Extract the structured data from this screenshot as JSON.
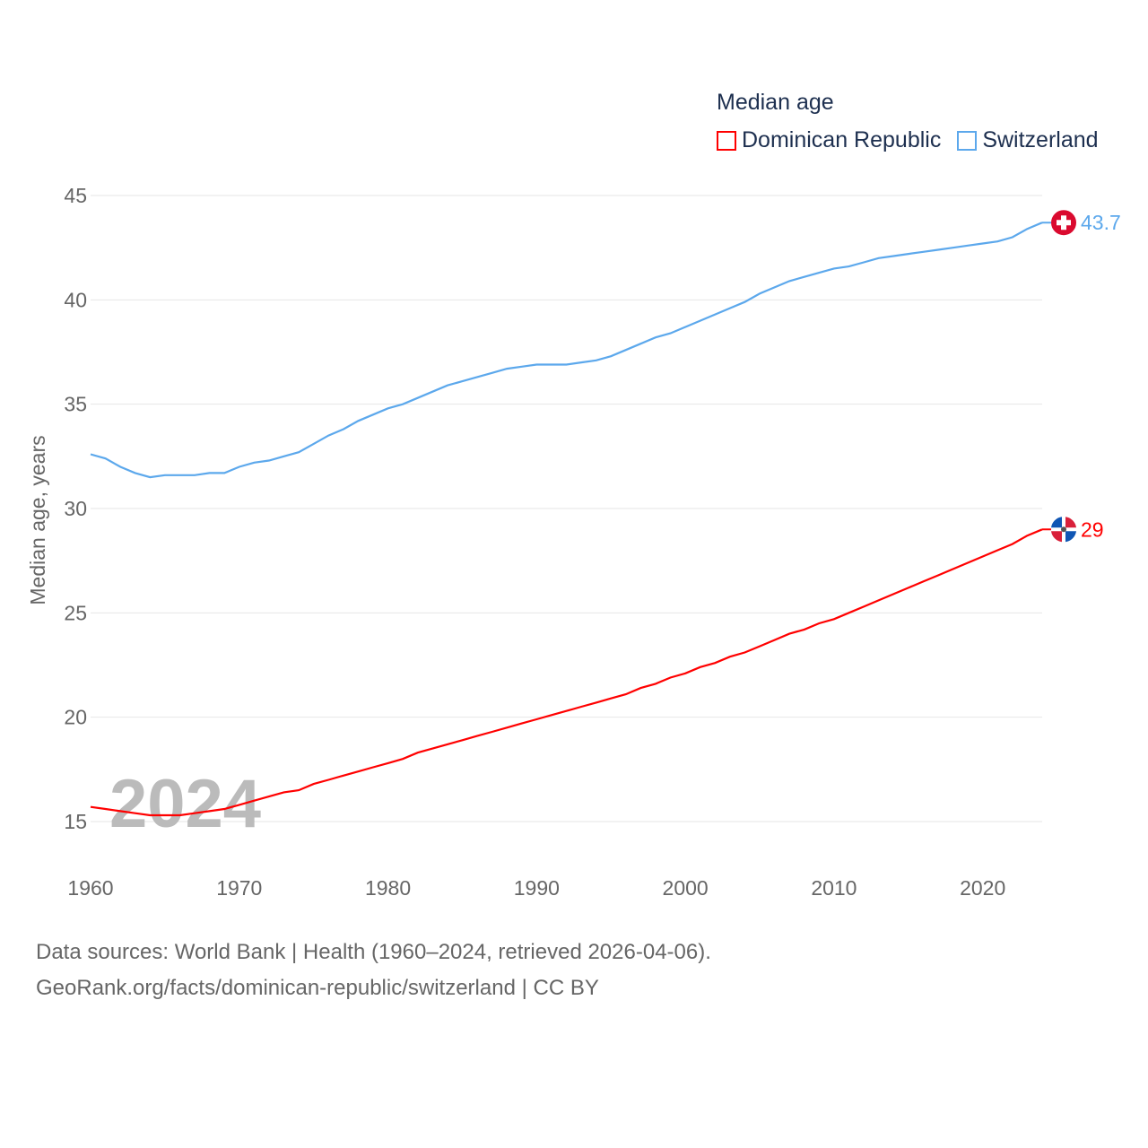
{
  "chart_data": {
    "type": "line",
    "title": "Median age",
    "xlabel": "",
    "ylabel": "Median age, years",
    "xlim": [
      1960,
      2024
    ],
    "ylim": [
      15,
      45
    ],
    "yticks": [
      15,
      20,
      25,
      30,
      35,
      40,
      45
    ],
    "xticks": [
      1960,
      1970,
      1980,
      1990,
      2000,
      2010,
      2020
    ],
    "grid": true,
    "legend_position": "top-right",
    "watermark_year": "2024",
    "x": [
      1960,
      1961,
      1962,
      1963,
      1964,
      1965,
      1966,
      1967,
      1968,
      1969,
      1970,
      1971,
      1972,
      1973,
      1974,
      1975,
      1976,
      1977,
      1978,
      1979,
      1980,
      1981,
      1982,
      1983,
      1984,
      1985,
      1986,
      1987,
      1988,
      1989,
      1990,
      1991,
      1992,
      1993,
      1994,
      1995,
      1996,
      1997,
      1998,
      1999,
      2000,
      2001,
      2002,
      2003,
      2004,
      2005,
      2006,
      2007,
      2008,
      2009,
      2010,
      2011,
      2012,
      2013,
      2014,
      2015,
      2016,
      2017,
      2018,
      2019,
      2020,
      2021,
      2022,
      2023,
      2024
    ],
    "series": [
      {
        "name": "Dominican Republic",
        "color": "#ff0000",
        "end_label": "29",
        "values": [
          15.7,
          15.6,
          15.5,
          15.4,
          15.3,
          15.3,
          15.3,
          15.4,
          15.5,
          15.6,
          15.8,
          16.0,
          16.2,
          16.4,
          16.5,
          16.8,
          17.0,
          17.2,
          17.4,
          17.6,
          17.8,
          18.0,
          18.3,
          18.5,
          18.7,
          18.9,
          19.1,
          19.3,
          19.5,
          19.7,
          19.9,
          20.1,
          20.3,
          20.5,
          20.7,
          20.9,
          21.1,
          21.4,
          21.6,
          21.9,
          22.1,
          22.4,
          22.6,
          22.9,
          23.1,
          23.4,
          23.7,
          24.0,
          24.2,
          24.5,
          24.7,
          25.0,
          25.3,
          25.6,
          25.9,
          26.2,
          26.5,
          26.8,
          27.1,
          27.4,
          27.7,
          28.0,
          28.3,
          28.7,
          29.0
        ]
      },
      {
        "name": "Switzerland",
        "color": "#5ca8ec",
        "end_label": "43.7",
        "values": [
          32.6,
          32.4,
          32.0,
          31.7,
          31.5,
          31.6,
          31.6,
          31.6,
          31.7,
          31.7,
          32.0,
          32.2,
          32.3,
          32.5,
          32.7,
          33.1,
          33.5,
          33.8,
          34.2,
          34.5,
          34.8,
          35.0,
          35.3,
          35.6,
          35.9,
          36.1,
          36.3,
          36.5,
          36.7,
          36.8,
          36.9,
          36.9,
          36.9,
          37.0,
          37.1,
          37.3,
          37.6,
          37.9,
          38.2,
          38.4,
          38.7,
          39.0,
          39.3,
          39.6,
          39.9,
          40.3,
          40.6,
          40.9,
          41.1,
          41.3,
          41.5,
          41.6,
          41.8,
          42.0,
          42.1,
          42.2,
          42.3,
          42.4,
          42.5,
          42.6,
          42.7,
          42.8,
          43.0,
          43.4,
          43.7
        ]
      }
    ]
  },
  "footer": {
    "line1": "Data sources: World Bank | Health (1960–2024, retrieved 2026-04-06).",
    "line2": "GeoRank.org/facts/dominican-republic/switzerland | CC BY"
  }
}
